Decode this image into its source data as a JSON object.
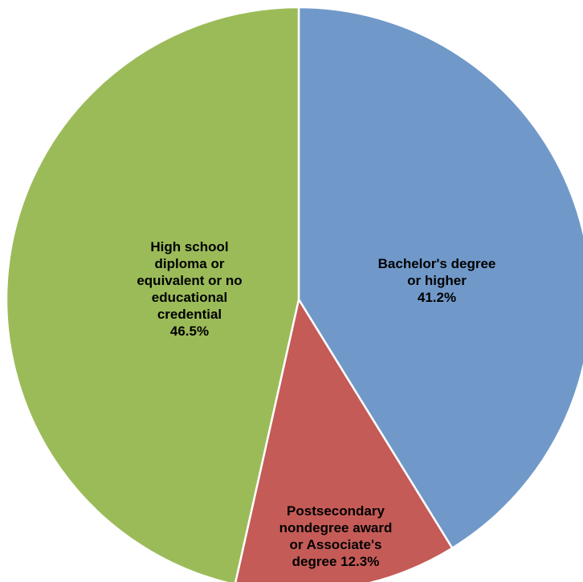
{
  "chart_data": {
    "type": "pie",
    "start": "12 o'clock",
    "direction": "clockwise",
    "slices": [
      {
        "name": "Bachelor's degree or higher",
        "value": 41.2,
        "color": "#7099C9",
        "label_lines": [
          "Bachelor's degree",
          "or higher",
          "41.2%"
        ]
      },
      {
        "name": "Postsecondary nondegree award or Associate's degree",
        "value": 12.3,
        "color": "#C45B57",
        "label_lines": [
          "Postsecondary",
          "nondegree award",
          "or Associate's",
          "degree 12.3%"
        ]
      },
      {
        "name": "High school diploma or equivalent or no educational credential",
        "value": 46.5,
        "color": "#9BBB59",
        "label_lines": [
          "High school",
          "diploma or",
          "equivalent or no",
          "educational",
          "credential",
          "46.5%"
        ]
      }
    ]
  }
}
